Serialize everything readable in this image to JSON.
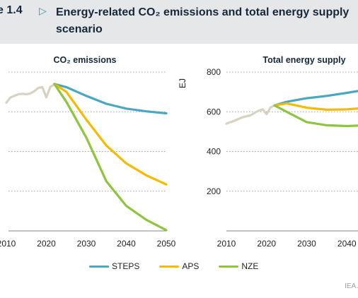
{
  "figure": {
    "label": "e 1.4",
    "arrow_icon": "triangle-right-icon",
    "title_line1": "Energy-related CO₂ emissions and total energy supply",
    "title_line2": "scenario"
  },
  "legend": [
    {
      "name": "STEPS",
      "color": "#4aa6c1"
    },
    {
      "name": "APS",
      "color": "#f5bb00"
    },
    {
      "name": "NZE",
      "color": "#8dc53e"
    }
  ],
  "source": "IEA.",
  "chart_data": [
    {
      "type": "line",
      "title": "CO₂ emissions",
      "xlabel": "",
      "ylabel": "",
      "x_ticks": [
        "2010",
        "2020",
        "2030",
        "2040",
        "2050"
      ],
      "xlim": [
        2010,
        2050
      ],
      "ylim": [
        0,
        40
      ],
      "grid": "horizontal dotted",
      "series": [
        {
          "color": "#d9d2c0",
          "x": [
            2010,
            2011,
            2012,
            2013,
            2014,
            2015,
            2016,
            2017,
            2018,
            2019,
            2020,
            2021,
            2022
          ],
          "y": [
            32.3,
            33.6,
            34.0,
            34.4,
            34.5,
            34.4,
            34.6,
            35.2,
            36.0,
            36.2,
            33.6,
            36.3,
            36.8
          ]
        },
        {
          "name": "STEPS",
          "color": "#4aa6c1",
          "x": [
            2022,
            2025,
            2030,
            2035,
            2040,
            2045,
            2050
          ],
          "y": [
            37.0,
            36.2,
            34.0,
            32.0,
            30.8,
            30.1,
            29.6
          ]
        },
        {
          "name": "APS",
          "color": "#f5bb00",
          "x": [
            2022,
            2025,
            2030,
            2035,
            2040,
            2045,
            2050
          ],
          "y": [
            37.0,
            35.0,
            28.0,
            21.5,
            17.0,
            14.0,
            11.7
          ]
        },
        {
          "name": "NZE",
          "color": "#8dc53e",
          "x": [
            2022,
            2025,
            2030,
            2035,
            2040,
            2045,
            2050
          ],
          "y": [
            37.0,
            32.5,
            23.5,
            12.5,
            6.3,
            2.8,
            0.2
          ]
        }
      ]
    },
    {
      "type": "line",
      "title": "Total energy supply",
      "xlabel": "",
      "ylabel": "EJ",
      "x_ticks": [
        "2010",
        "2020",
        "2030",
        "2040"
      ],
      "y_ticks": [
        "200",
        "400",
        "600",
        "800"
      ],
      "xlim": [
        2010,
        2050
      ],
      "ylim": [
        0,
        800
      ],
      "grid": "horizontal dotted",
      "series": [
        {
          "color": "#d9d2c0",
          "x": [
            2010,
            2012,
            2014,
            2016,
            2018,
            2019,
            2020,
            2021,
            2022
          ],
          "y": [
            540,
            555,
            572,
            582,
            605,
            612,
            588,
            622,
            632
          ]
        },
        {
          "name": "STEPS",
          "color": "#4aa6c1",
          "x": [
            2022,
            2025,
            2030,
            2035,
            2040,
            2045,
            2050
          ],
          "y": [
            632,
            650,
            668,
            680,
            695,
            712,
            730
          ]
        },
        {
          "name": "APS",
          "color": "#f5bb00",
          "x": [
            2022,
            2025,
            2030,
            2035,
            2040,
            2045,
            2050
          ],
          "y": [
            632,
            642,
            620,
            610,
            612,
            620,
            630
          ]
        },
        {
          "name": "NZE",
          "color": "#8dc53e",
          "x": [
            2022,
            2025,
            2030,
            2035,
            2040,
            2045,
            2050
          ],
          "y": [
            632,
            600,
            548,
            532,
            528,
            532,
            540
          ]
        }
      ]
    }
  ]
}
